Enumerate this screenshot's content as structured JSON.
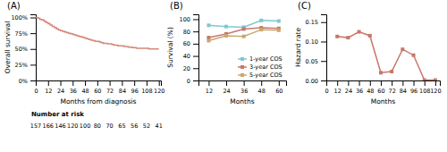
{
  "chart_data": [
    {
      "type": "step",
      "title": "(A)",
      "xlabel": "Months from diagnosis",
      "ylabel": "Overall survival",
      "x": [
        0,
        2,
        4,
        6,
        8,
        10,
        12,
        14,
        16,
        18,
        20,
        22,
        24,
        26,
        28,
        30,
        32,
        34,
        36,
        38,
        40,
        42,
        44,
        46,
        48,
        50,
        52,
        54,
        56,
        58,
        60,
        62,
        64,
        66,
        68,
        70,
        72,
        74,
        76,
        78,
        80,
        82,
        84,
        86,
        88,
        90,
        92,
        94,
        96,
        98,
        100,
        102,
        104,
        106,
        108,
        110,
        112,
        114,
        116,
        118,
        120
      ],
      "series": [
        {
          "color": "#d4897a",
          "values": [
            100,
            99,
            97,
            96,
            94,
            92,
            90,
            88,
            86,
            84,
            82,
            80,
            79,
            78,
            77,
            76,
            75,
            74,
            73,
            72,
            71,
            70,
            69,
            68,
            67,
            66,
            65,
            64,
            63,
            62,
            62,
            61,
            60,
            59,
            59,
            58,
            58,
            57,
            56,
            56,
            55,
            55,
            55,
            54,
            54,
            53,
            53,
            52,
            52,
            51,
            51,
            51,
            51,
            51,
            51,
            50,
            50,
            50,
            50,
            50,
            50
          ]
        }
      ],
      "xlim": [
        0,
        122
      ],
      "ylim": [
        0,
        105
      ],
      "xticks": [
        0,
        12,
        24,
        36,
        48,
        60,
        72,
        84,
        96,
        108,
        120
      ],
      "yticks": [
        {
          "value": 0,
          "label": "0%"
        },
        {
          "value": 25,
          "label": "25%"
        },
        {
          "value": 50,
          "label": "50%"
        },
        {
          "value": 75,
          "label": "75%"
        },
        {
          "value": 100,
          "label": "100%"
        }
      ],
      "grid": false,
      "at_risk_title": "Number at risk",
      "at_risk_x": [
        0,
        12,
        24,
        36,
        48,
        60,
        72,
        84,
        96,
        108,
        120
      ],
      "at_risk_values": [
        157,
        166,
        146,
        120,
        100,
        80,
        70,
        65,
        56,
        52,
        41
      ]
    },
    {
      "type": "line",
      "title": "(B)",
      "xlabel": "Months",
      "ylabel": "Survival (%)",
      "x": [
        12,
        24,
        36,
        48,
        60
      ],
      "series": [
        {
          "name": "1-year COS",
          "color": "#7ec8d0",
          "values": [
            90,
            88,
            87,
            98,
            97
          ]
        },
        {
          "name": "3-year COS",
          "color": "#c8776a",
          "values": [
            70,
            76,
            84,
            86,
            85
          ]
        },
        {
          "name": "5-year COS",
          "color": "#c8a870",
          "values": [
            65,
            73,
            72,
            83,
            82
          ]
        }
      ],
      "marker": "square",
      "xlim": [
        5,
        65
      ],
      "ylim": [
        0,
        108
      ],
      "xticks": [
        12,
        24,
        36,
        48,
        60
      ],
      "yticks": [
        0,
        20,
        40,
        60,
        80,
        100
      ],
      "grid": false,
      "legend": "lower right"
    },
    {
      "type": "line",
      "title": "(C)",
      "xlabel": "Months",
      "ylabel": "Hazard rate",
      "x": [
        12,
        24,
        36,
        48,
        60,
        72,
        84,
        96,
        108,
        120
      ],
      "series": [
        {
          "color": "#c8776a",
          "values": [
            0.113,
            0.11,
            0.125,
            0.115,
            0.02,
            0.023,
            0.08,
            0.065,
            0.001,
            0.001
          ]
        }
      ],
      "marker": "square",
      "xlim": [
        0,
        125
      ],
      "ylim": [
        0,
        0.17
      ],
      "xticks": [
        0,
        12,
        24,
        36,
        48,
        60,
        72,
        84,
        96,
        108,
        120
      ],
      "yticks": [
        {
          "value": 0,
          "label": "0.00"
        },
        0.05,
        {
          "value": 0.1,
          "label": "0.10"
        },
        0.15
      ],
      "grid": false
    }
  ]
}
